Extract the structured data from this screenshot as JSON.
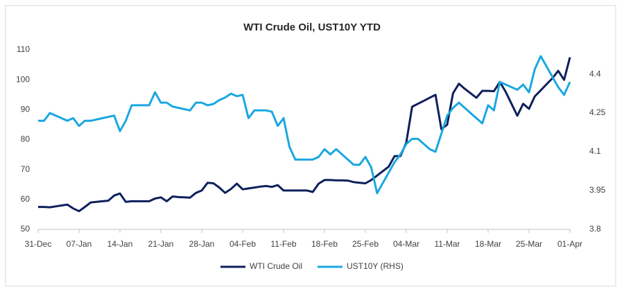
{
  "chart_data": {
    "type": "line",
    "title": "WTI Crude Oil, UST10Y YTD",
    "categories": [
      "31-Dec",
      null,
      null,
      null,
      null,
      null,
      null,
      "07-Jan",
      null,
      null,
      null,
      null,
      null,
      null,
      "14-Jan",
      null,
      null,
      null,
      null,
      null,
      null,
      "21-Jan",
      null,
      null,
      null,
      null,
      null,
      null,
      "28-Jan",
      null,
      null,
      null,
      null,
      null,
      null,
      "04-Feb",
      null,
      null,
      null,
      null,
      null,
      null,
      "11-Feb",
      null,
      null,
      null,
      null,
      null,
      null,
      "18-Feb",
      null,
      null,
      null,
      null,
      null,
      null,
      "25-Feb",
      null,
      null,
      null,
      null,
      null,
      null,
      "04-Mar",
      null,
      null,
      null,
      null,
      null,
      null,
      "11-Mar",
      null,
      null,
      null,
      null,
      null,
      null,
      "18-Mar",
      null,
      null,
      null,
      null,
      null,
      null,
      "25-Mar",
      null,
      null,
      null,
      null,
      null,
      null,
      "01-Apr"
    ],
    "series": [
      {
        "name": "WTI Crude Oil",
        "color": "#0d1f5c",
        "values": [
          57.5,
          57.5,
          57.4,
          57.7,
          58,
          58.3,
          57,
          56.1,
          57.5,
          59,
          59.2,
          59.4,
          59.6,
          61.3,
          62,
          59.2,
          59.4,
          59.4,
          59.4,
          59.4,
          60.3,
          60.7,
          59.4,
          61,
          60.8,
          60.7,
          60.6,
          62.2,
          63,
          65.6,
          65.4,
          64,
          62.2,
          63.5,
          65.3,
          63.4,
          63.7,
          64,
          64.3,
          64.5,
          64.2,
          64.8,
          63,
          63,
          63,
          63,
          63,
          62.5,
          65.3,
          66.5,
          66.5,
          66.4,
          66.4,
          66.3,
          65.8,
          65.6,
          65.4,
          66.5,
          68,
          69.5,
          71,
          74.5,
          74.5,
          79,
          91,
          92,
          93,
          94,
          95,
          83.5,
          85,
          95.5,
          98.7,
          97,
          95.5,
          94,
          96.3,
          96.3,
          96.2,
          99.3,
          96,
          92,
          88,
          92,
          90.3,
          94.5,
          96.5,
          98.5,
          100.5,
          103,
          100,
          107.5
        ]
      },
      {
        "name": "UST10Y (RHS)",
        "color": "#1aa7e0",
        "axis": "y2",
        "values": [
          4.22,
          4.22,
          4.25,
          4.24,
          4.23,
          4.22,
          4.23,
          4.2,
          4.22,
          4.22,
          4.225,
          4.23,
          4.235,
          4.24,
          4.18,
          4.22,
          4.28,
          4.28,
          4.28,
          4.28,
          4.33,
          4.29,
          4.29,
          4.275,
          4.27,
          4.265,
          4.26,
          4.29,
          4.29,
          4.28,
          4.285,
          4.3,
          4.31,
          4.325,
          4.315,
          4.32,
          4.23,
          4.26,
          4.26,
          4.26,
          4.255,
          4.2,
          4.23,
          4.12,
          4.07,
          4.07,
          4.07,
          4.07,
          4.08,
          4.11,
          4.09,
          4.11,
          4.09,
          4.07,
          4.05,
          4.05,
          4.08,
          4.04,
          3.94,
          3.98,
          4.02,
          4.06,
          4.09,
          4.13,
          4.15,
          4.15,
          4.13,
          4.11,
          4.1,
          4.17,
          4.24,
          4.27,
          4.29,
          4.27,
          4.25,
          4.23,
          4.21,
          4.28,
          4.26,
          4.37,
          4.36,
          4.35,
          4.34,
          4.36,
          4.33,
          4.42,
          4.47,
          4.43,
          4.39,
          4.35,
          4.32,
          4.37
        ]
      }
    ],
    "ylim": [
      50,
      110
    ],
    "yticks": [
      50,
      60,
      70,
      80,
      90,
      100,
      110
    ],
    "y2lim": [
      3.8,
      4.494
    ],
    "y2ticks": [
      3.8,
      3.95,
      4.1,
      4.25,
      4.4
    ],
    "grid": false,
    "legend": "bottom"
  }
}
